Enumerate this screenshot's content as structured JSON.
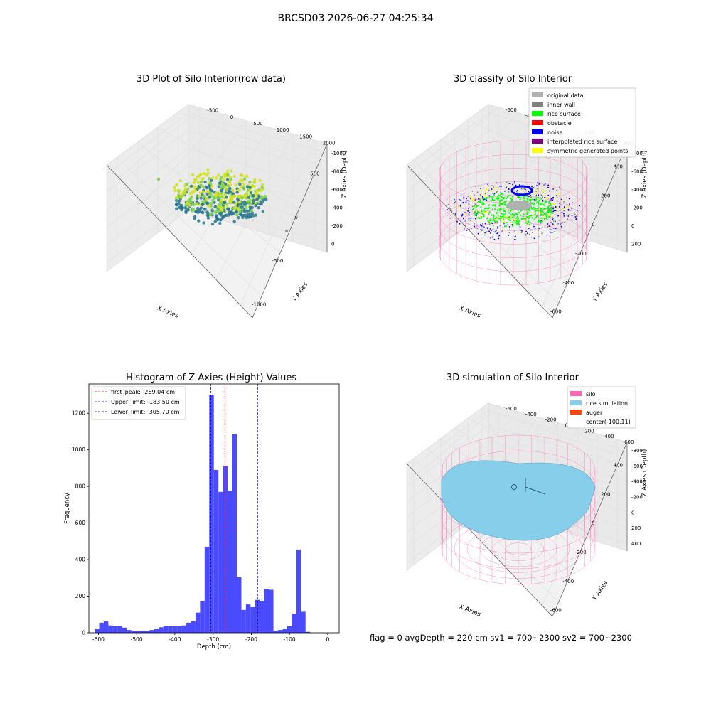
{
  "suptitle": "BRCSD03 2026-06-27 04:25:34",
  "footer": "flag = 0     avgDepth = 220 cm  sv1 = 700~2300  sv2 = 700~2300",
  "colors": {
    "raw_low": "#2a788e",
    "raw_high": "#d2e21b",
    "original_data": "#b0b0b0",
    "inner_wall": "#808080",
    "rice_surface": "#00ff00",
    "obstacle": "#ff0000",
    "noise": "#0000ff",
    "interpolated_rice_surface": "#800080",
    "symmetric_generated_points": "#ffff00",
    "silo": "#ff69b4",
    "rice_simulation": "#87ceeb",
    "auger": "#ff4500",
    "hist_bar": "#4a4aff"
  },
  "panels": {
    "raw": {
      "title": "3D Plot of Silo Interior(row data)",
      "xlabel": "X Axies",
      "ylabel": "Y Axies",
      "zlabel": "Z Axies (Depth)",
      "xticks": [
        "-1000",
        "-500",
        "0",
        "500"
      ],
      "yticks": [
        "-500",
        "0",
        "500",
        "1000",
        "1500",
        "2000"
      ],
      "zticks": [
        "0",
        "-200",
        "-400",
        "-600",
        "-800",
        "-1000"
      ]
    },
    "classify": {
      "title": "3D classify of Silo Interior",
      "xlabel": "X Axies",
      "ylabel": "Y Axies",
      "zlabel": "Z Axies (Depth)",
      "xticks": [
        "-600",
        "-400",
        "-200",
        "0",
        "200",
        "400"
      ],
      "yticks": [
        "-600",
        "-400",
        "-200",
        "0",
        "200",
        "400",
        "600"
      ],
      "zticks": [
        "200",
        "0",
        "-200",
        "-400",
        "-600",
        "-800"
      ],
      "legend": [
        {
          "label": "original data",
          "color": "#b0b0b0"
        },
        {
          "label": "inner wall",
          "color": "#808080"
        },
        {
          "label": "rice surface",
          "color": "#00ff00"
        },
        {
          "label": "obstacle",
          "color": "#ff0000"
        },
        {
          "label": "noise",
          "color": "#0000ff"
        },
        {
          "label": "interpolated rice surface",
          "color": "#800080"
        },
        {
          "label": "symmetric generated points",
          "color": "#ffff00"
        }
      ]
    },
    "simulation": {
      "title": "3D simulation of Silo Interior",
      "xlabel": "X Axies",
      "ylabel": "Y Axies",
      "zlabel": "Z Axies (Depth)",
      "xticks": [
        "-600",
        "-400",
        "-200",
        "0",
        "200",
        "400"
      ],
      "yticks": [
        "-600",
        "-400",
        "-200",
        "0",
        "200",
        "400",
        "600"
      ],
      "zticks": [
        "400",
        "200",
        "0",
        "-200",
        "-400",
        "-600",
        "-800"
      ],
      "legend": [
        {
          "label": "silo",
          "color": "#ff69b4"
        },
        {
          "label": "rice simulation",
          "color": "#87ceeb"
        },
        {
          "label": "auger",
          "color": "#ff4500"
        },
        {
          "label": "center(-100,11)",
          "color": ""
        }
      ]
    }
  },
  "chart_data": {
    "type": "bar",
    "title": "Histogram of Z-Axies (Height) Values",
    "xlabel": "Depth (cm)",
    "ylabel": "Frequency",
    "xlim": [
      -625,
      30
    ],
    "ylim": [
      0,
      1360
    ],
    "xticks": [
      -600,
      -500,
      -400,
      -300,
      -200,
      -100,
      0
    ],
    "yticks": [
      0,
      200,
      400,
      600,
      800,
      1000,
      1200
    ],
    "bin_start": -610,
    "bin_width": 12,
    "values": [
      20,
      55,
      62,
      40,
      35,
      38,
      28,
      15,
      10,
      8,
      12,
      10,
      15,
      20,
      30,
      38,
      35,
      35,
      35,
      40,
      55,
      62,
      110,
      175,
      470,
      1300,
      890,
      770,
      910,
      775,
      1085,
      305,
      125,
      155,
      140,
      180,
      175,
      240,
      235,
      10,
      15,
      22,
      35,
      105,
      455,
      115,
      5
    ],
    "lines": [
      {
        "label": "first_peak: -269.04 cm",
        "x": -269.04,
        "color": "#ff0000"
      },
      {
        "label": "Upper_limit: -183.50 cm",
        "x": -183.5,
        "color": "#0000cc"
      },
      {
        "label": "Lower_limit: -305.70 cm",
        "x": -305.7,
        "color": "#0000cc"
      }
    ],
    "legend_position": "upper left"
  }
}
